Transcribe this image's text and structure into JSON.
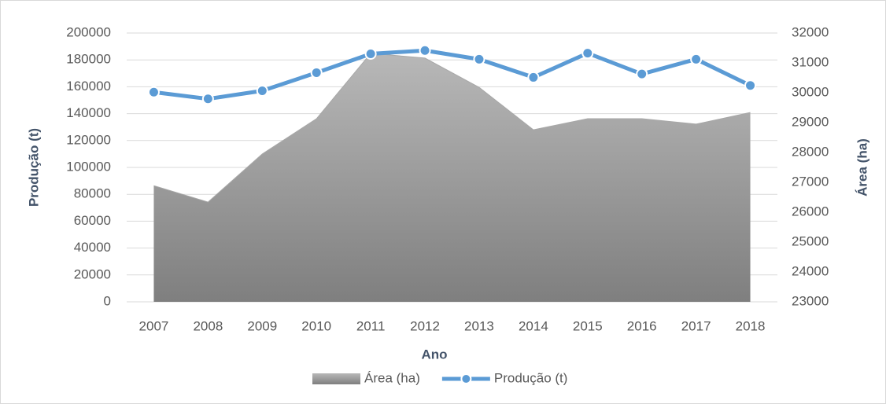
{
  "chart_data": {
    "type": "combo",
    "x_label": "Ano",
    "y_label": "Produção (t)",
    "y2_label": "Área (ha)",
    "categories": [
      "2007",
      "2008",
      "2009",
      "2010",
      "2011",
      "2012",
      "2013",
      "2014",
      "2015",
      "2016",
      "2017",
      "2018"
    ],
    "series": [
      {
        "name": "Área (ha)",
        "type": "area",
        "axis": "y2",
        "color": "#999999",
        "values": [
          26890,
          26340,
          27950,
          29130,
          31320,
          31160,
          30180,
          28760,
          29130,
          29130,
          28950,
          29340
        ]
      },
      {
        "name": "Produção (t)",
        "type": "line",
        "axis": "y",
        "color": "#5b9bd5",
        "values": [
          156000,
          151000,
          157000,
          170500,
          184500,
          187000,
          180500,
          167000,
          185000,
          169500,
          180500,
          161000
        ]
      }
    ],
    "ylim": [
      0,
      200000
    ],
    "yticks": [
      0,
      20000,
      40000,
      60000,
      80000,
      100000,
      120000,
      140000,
      160000,
      180000,
      200000
    ],
    "y2lim": [
      23000,
      32000
    ],
    "y2ticks": [
      23000,
      24000,
      25000,
      26000,
      27000,
      28000,
      29000,
      30000,
      31000,
      32000
    ],
    "grid": true,
    "legend": "bottom"
  }
}
